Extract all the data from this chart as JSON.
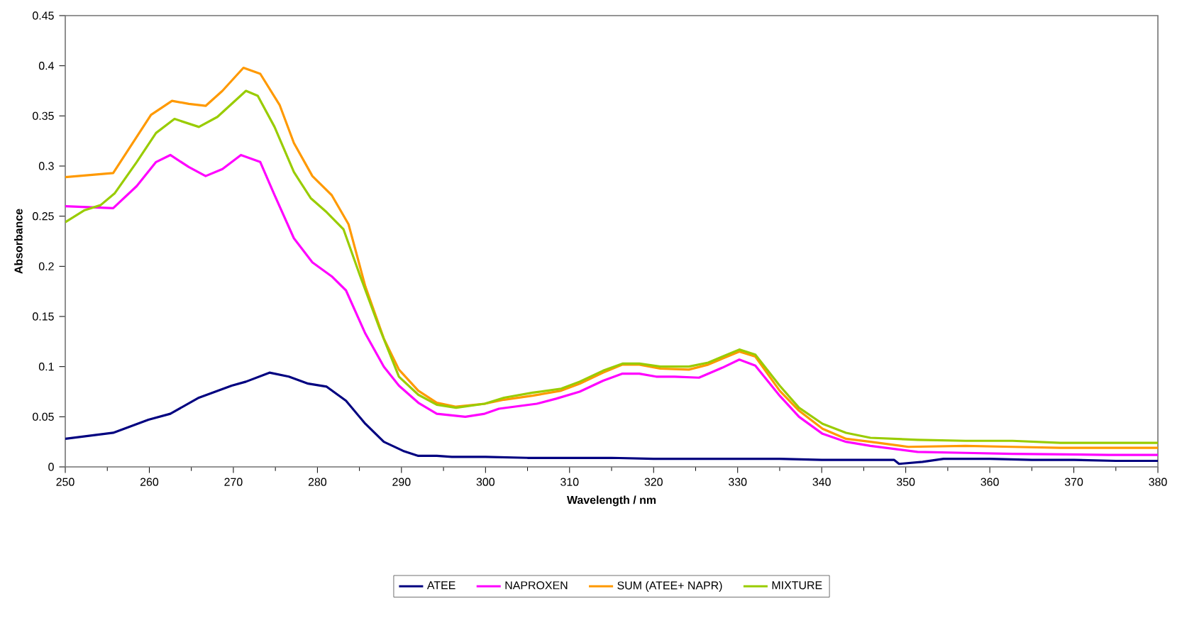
{
  "chart_data": {
    "type": "line",
    "xlabel": "Wavelength / nm",
    "ylabel": "Absorbance",
    "xlim": [
      250,
      380
    ],
    "ylim": [
      0,
      0.45
    ],
    "xticks": [
      250,
      260,
      270,
      280,
      290,
      300,
      310,
      320,
      330,
      340,
      350,
      360,
      370,
      380
    ],
    "yticks": [
      0,
      0.05,
      0.1,
      0.15,
      0.2,
      0.25,
      0.3,
      0.35,
      0.4,
      0.45
    ],
    "legend": "bottom",
    "grid": false,
    "marker": "none",
    "line_style": "solid",
    "series": [
      {
        "name": "ATEE",
        "color": "#000080",
        "x": [
          250,
          255.7,
          259.9,
          262.5,
          265.9,
          269.8,
          271.5,
          274.3,
          276.6,
          278.9,
          281.1,
          283.4,
          285.7,
          287.9,
          290.2,
          292,
          294.2,
          296,
          300,
          305,
          310,
          315,
          320,
          325,
          330,
          335,
          340,
          345,
          348.6,
          349.2,
          352,
          354.5,
          360,
          365,
          370,
          375,
          380
        ],
        "values": [
          0.028,
          0.034,
          0.047,
          0.053,
          0.069,
          0.081,
          0.085,
          0.094,
          0.09,
          0.083,
          0.08,
          0.066,
          0.043,
          0.025,
          0.016,
          0.011,
          0.011,
          0.01,
          0.01,
          0.009,
          0.009,
          0.009,
          0.008,
          0.008,
          0.008,
          0.008,
          0.007,
          0.007,
          0.007,
          0.003,
          0.005,
          0.008,
          0.008,
          0.007,
          0.007,
          0.006,
          0.006
        ]
      },
      {
        "name": "NAPROXEN",
        "color": "#ff00ff",
        "x": [
          250,
          255.7,
          258.5,
          260.8,
          262.5,
          264.7,
          266.7,
          268.7,
          270.9,
          273.2,
          274.9,
          277.2,
          279.4,
          281.7,
          283.4,
          285.7,
          287.9,
          289.7,
          292,
          294.2,
          297.6,
          299.9,
          301.6,
          306.1,
          308.4,
          311.2,
          314,
          316.3,
          318.3,
          320.3,
          322.5,
          325.4,
          328.2,
          330.2,
          332.1,
          335,
          337.3,
          340.1,
          342.9,
          345.8,
          351.4,
          357.1,
          362.7,
          374.1,
          380
        ],
        "values": [
          0.26,
          0.258,
          0.28,
          0.304,
          0.311,
          0.299,
          0.29,
          0.297,
          0.311,
          0.304,
          0.271,
          0.228,
          0.204,
          0.19,
          0.176,
          0.133,
          0.1,
          0.081,
          0.064,
          0.053,
          0.05,
          0.053,
          0.058,
          0.063,
          0.068,
          0.075,
          0.086,
          0.093,
          0.093,
          0.09,
          0.09,
          0.089,
          0.099,
          0.107,
          0.101,
          0.071,
          0.05,
          0.033,
          0.025,
          0.021,
          0.015,
          0.014,
          0.013,
          0.012,
          0.012
        ]
      },
      {
        "name": "SUM (ATEE+ NAPR)",
        "color": "#ff9900",
        "x": [
          250,
          255.7,
          260.2,
          262.7,
          264.7,
          266.7,
          268.7,
          271.2,
          273.2,
          275.5,
          277.2,
          279.4,
          281.7,
          283.7,
          285.7,
          287.9,
          289.7,
          292,
          294.2,
          296.5,
          299.9,
          302.2,
          305.6,
          309,
          311.2,
          314,
          316.3,
          318.3,
          320.8,
          324.2,
          326.5,
          328.2,
          330.2,
          332.1,
          335,
          337.3,
          340.1,
          342.9,
          345.8,
          350.3,
          357.1,
          362.7,
          368.4,
          380
        ],
        "values": [
          0.289,
          0.293,
          0.351,
          0.365,
          0.362,
          0.36,
          0.375,
          0.398,
          0.392,
          0.361,
          0.323,
          0.29,
          0.271,
          0.242,
          0.18,
          0.128,
          0.097,
          0.076,
          0.064,
          0.06,
          0.063,
          0.067,
          0.071,
          0.076,
          0.083,
          0.094,
          0.102,
          0.102,
          0.098,
          0.097,
          0.102,
          0.108,
          0.115,
          0.11,
          0.076,
          0.056,
          0.038,
          0.028,
          0.025,
          0.02,
          0.021,
          0.02,
          0.019,
          0.019
        ]
      },
      {
        "name": "MIXTURE",
        "color": "#99cc00",
        "x": [
          250,
          252.3,
          254.2,
          255.9,
          258.5,
          260.8,
          263,
          265.9,
          268.1,
          271.5,
          272.9,
          274.9,
          277.2,
          279.2,
          281.1,
          283.1,
          285.1,
          287.4,
          289.7,
          292,
          294.2,
          296.5,
          299.9,
          302.2,
          305.6,
          309,
          311.2,
          314,
          316.3,
          318.3,
          320.8,
          324.2,
          326.5,
          328.2,
          330.2,
          332.1,
          335,
          337.3,
          340.1,
          342.9,
          345.8,
          351.4,
          357.1,
          362.7,
          368.4,
          374.1,
          380
        ],
        "values": [
          0.244,
          0.256,
          0.261,
          0.273,
          0.304,
          0.333,
          0.347,
          0.339,
          0.349,
          0.375,
          0.37,
          0.339,
          0.294,
          0.268,
          0.254,
          0.237,
          0.19,
          0.138,
          0.09,
          0.072,
          0.062,
          0.059,
          0.063,
          0.069,
          0.074,
          0.078,
          0.085,
          0.096,
          0.103,
          0.103,
          0.1,
          0.1,
          0.104,
          0.11,
          0.117,
          0.112,
          0.081,
          0.059,
          0.043,
          0.034,
          0.029,
          0.027,
          0.026,
          0.026,
          0.024,
          0.024,
          0.024
        ]
      }
    ]
  }
}
